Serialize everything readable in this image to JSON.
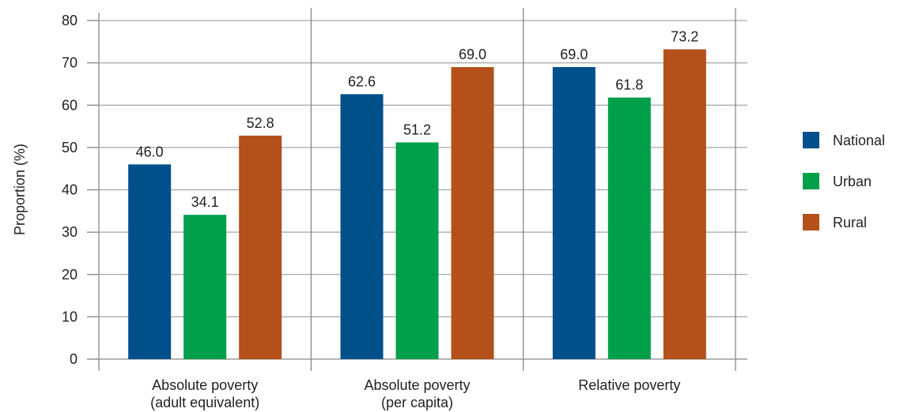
{
  "chart_data": {
    "type": "bar",
    "title": "",
    "xlabel": "",
    "ylabel": "Proportion (%)",
    "ylim": [
      0,
      80
    ],
    "yticks": [
      0,
      10,
      20,
      30,
      40,
      50,
      60,
      70,
      80
    ],
    "grid": true,
    "legend_position": "right",
    "categories": [
      [
        "Absolute poverty",
        "(adult equivalent)"
      ],
      [
        "Absolute poverty",
        "(per capita)"
      ],
      [
        "Relative poverty"
      ]
    ],
    "series": [
      {
        "name": "National",
        "color": "#00508c",
        "values": [
          46.0,
          62.6,
          69.0
        ]
      },
      {
        "name": "Urban",
        "color": "#00a04b",
        "values": [
          34.1,
          51.2,
          61.8
        ]
      },
      {
        "name": "Rural",
        "color": "#b4501a",
        "values": [
          52.8,
          69.0,
          73.2
        ]
      }
    ]
  }
}
